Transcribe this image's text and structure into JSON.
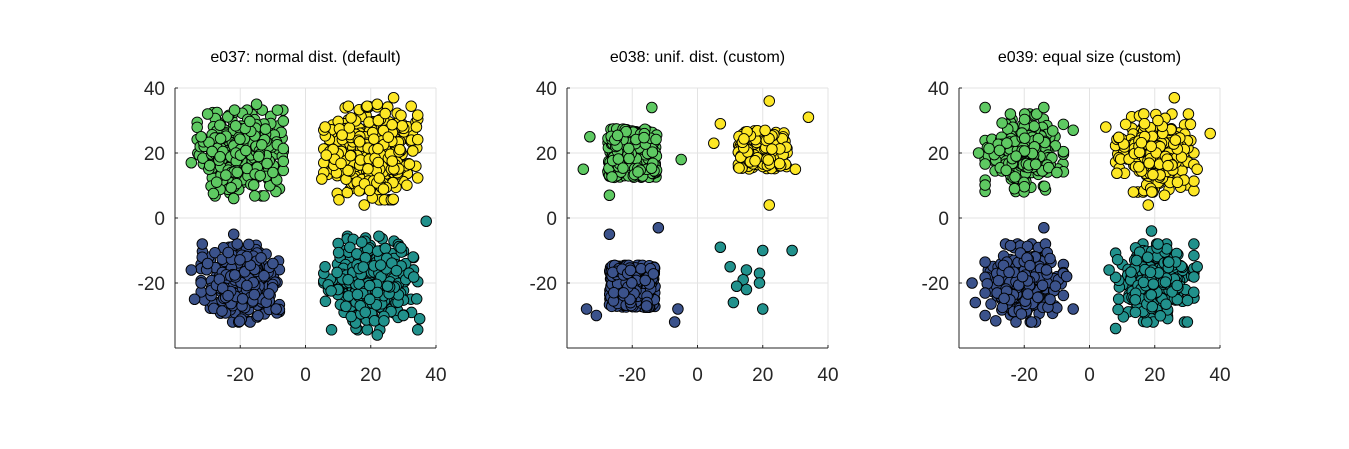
{
  "figure": {
    "background": "#ffffff"
  },
  "chart_data": [
    {
      "type": "scatter",
      "title": "e037: normal dist. (default)",
      "xlim": [
        -40,
        40
      ],
      "ylim": [
        -40,
        40
      ],
      "xticks": [
        -20,
        0,
        20,
        40
      ],
      "yticks": [
        -20,
        0,
        20,
        40
      ],
      "grid": true,
      "legend": "none",
      "series": [
        {
          "color": "#5ec962",
          "center": [
            -20,
            20
          ],
          "spread": [
            5.5,
            5.5
          ],
          "distribution": "normal",
          "count": 420,
          "seed": 11,
          "extra_points": [
            [
              -35,
              17
            ],
            [
              -30,
              32
            ],
            [
              -15,
              35
            ],
            [
              -22,
              6
            ],
            [
              -10,
              14
            ],
            [
              -32,
              25
            ]
          ]
        },
        {
          "color": "#fde725",
          "center": [
            20,
            20
          ],
          "spread": [
            6,
            6
          ],
          "distribution": "normal",
          "count": 420,
          "seed": 12,
          "extra_points": [
            [
              27,
              37
            ],
            [
              18,
              4
            ],
            [
              5,
              12
            ],
            [
              34,
              28
            ],
            [
              6,
              28
            ],
            [
              22,
              35
            ]
          ]
        },
        {
          "color": "#3b528b",
          "center": [
            -20,
            -20
          ],
          "spread": [
            5,
            5
          ],
          "distribution": "normal",
          "count": 420,
          "seed": 13,
          "extra_points": [
            [
              -35,
              -16
            ],
            [
              -34,
              -25
            ],
            [
              -9,
              -28
            ],
            [
              -22,
              -5
            ],
            [
              -10,
              -14
            ],
            [
              -30,
              -14
            ]
          ]
        },
        {
          "color": "#21918c",
          "center": [
            20,
            -20
          ],
          "spread": [
            6,
            6
          ],
          "distribution": "normal",
          "count": 420,
          "seed": 14,
          "extra_points": [
            [
              37,
              -1
            ],
            [
              35,
              -31
            ],
            [
              22,
              -36
            ],
            [
              6,
              -15
            ],
            [
              30,
              -30
            ],
            [
              33,
              -12
            ]
          ]
        }
      ]
    },
    {
      "type": "scatter",
      "title": "e038: unif. dist. (custom)",
      "xlim": [
        -40,
        40
      ],
      "ylim": [
        -40,
        40
      ],
      "xticks": [
        -20,
        0,
        20,
        40
      ],
      "yticks": [
        -20,
        0,
        20,
        40
      ],
      "grid": true,
      "legend": "none",
      "series": [
        {
          "color": "#5ec962",
          "center": [
            -20,
            20
          ],
          "spread": [
            7.5,
            7.5
          ],
          "distribution": "uniform",
          "count": 460,
          "seed": 21,
          "extra_points": [
            [
              -35,
              15
            ],
            [
              -5,
              18
            ],
            [
              -14,
              34
            ],
            [
              -27,
              7
            ],
            [
              -33,
              25
            ]
          ]
        },
        {
          "color": "#fde725",
          "center": [
            20,
            21
          ],
          "spread": [
            7.5,
            6
          ],
          "distribution": "uniform",
          "count": 190,
          "seed": 22,
          "extra_points": [
            [
              34,
              31
            ],
            [
              22,
              4
            ],
            [
              5,
              23
            ],
            [
              22,
              36
            ],
            [
              7,
              29
            ],
            [
              30,
              15
            ]
          ]
        },
        {
          "color": "#3b528b",
          "center": [
            -20,
            -21
          ],
          "spread": [
            7,
            6.5
          ],
          "distribution": "uniform",
          "count": 420,
          "seed": 23,
          "extra_points": [
            [
              -34,
              -28
            ],
            [
              -31,
              -30
            ],
            [
              -7,
              -32
            ],
            [
              -27,
              -5
            ],
            [
              -6,
              -28
            ],
            [
              -12,
              -3
            ]
          ]
        },
        {
          "color": "#21918c",
          "center": [
            20,
            -20
          ],
          "spread": [
            0,
            0
          ],
          "distribution": "none",
          "count": 0,
          "seed": 24,
          "extra_points": [
            [
              7,
              -9
            ],
            [
              20,
              -10
            ],
            [
              29,
              -10
            ],
            [
              10,
              -15
            ],
            [
              15,
              -16
            ],
            [
              19,
              -17
            ],
            [
              14,
              -19
            ],
            [
              19,
              -20
            ],
            [
              12,
              -21
            ],
            [
              15,
              -22
            ],
            [
              11,
              -26
            ],
            [
              20,
              -28
            ]
          ]
        }
      ]
    },
    {
      "type": "scatter",
      "title": "e039: equal size (custom)",
      "xlim": [
        -40,
        40
      ],
      "ylim": [
        -40,
        40
      ],
      "xticks": [
        -20,
        0,
        20,
        40
      ],
      "yticks": [
        -20,
        0,
        20,
        40
      ],
      "grid": true,
      "legend": "none",
      "series": [
        {
          "color": "#5ec962",
          "center": [
            -20,
            20
          ],
          "spread": [
            5,
            5
          ],
          "distribution": "normal",
          "count": 330,
          "seed": 31,
          "extra_points": [
            [
              -32,
              34
            ],
            [
              -14,
              34
            ],
            [
              -5,
              27
            ],
            [
              -34,
              20
            ],
            [
              -23,
              9
            ],
            [
              -10,
              14
            ]
          ]
        },
        {
          "color": "#fde725",
          "center": [
            20,
            20
          ],
          "spread": [
            5,
            5
          ],
          "distribution": "normal",
          "count": 330,
          "seed": 32,
          "extra_points": [
            [
              26,
              37
            ],
            [
              18,
              4
            ],
            [
              5,
              28
            ],
            [
              37,
              26
            ],
            [
              23,
              7
            ],
            [
              33,
              15
            ]
          ]
        },
        {
          "color": "#3b528b",
          "center": [
            -20,
            -20
          ],
          "spread": [
            5,
            5
          ],
          "distribution": "normal",
          "count": 330,
          "seed": 33,
          "extra_points": [
            [
              -36,
              -20
            ],
            [
              -35,
              -26
            ],
            [
              -5,
              -28
            ],
            [
              -14,
              -3
            ],
            [
              -7,
              -18
            ],
            [
              -32,
              -30
            ]
          ]
        },
        {
          "color": "#21918c",
          "center": [
            20,
            -20
          ],
          "spread": [
            5,
            5
          ],
          "distribution": "normal",
          "count": 330,
          "seed": 34,
          "extra_points": [
            [
              6,
              -16
            ],
            [
              8,
              -34
            ],
            [
              30,
              -32
            ],
            [
              33,
              -15
            ],
            [
              19,
              -4
            ],
            [
              21,
              -8
            ]
          ]
        }
      ]
    }
  ]
}
